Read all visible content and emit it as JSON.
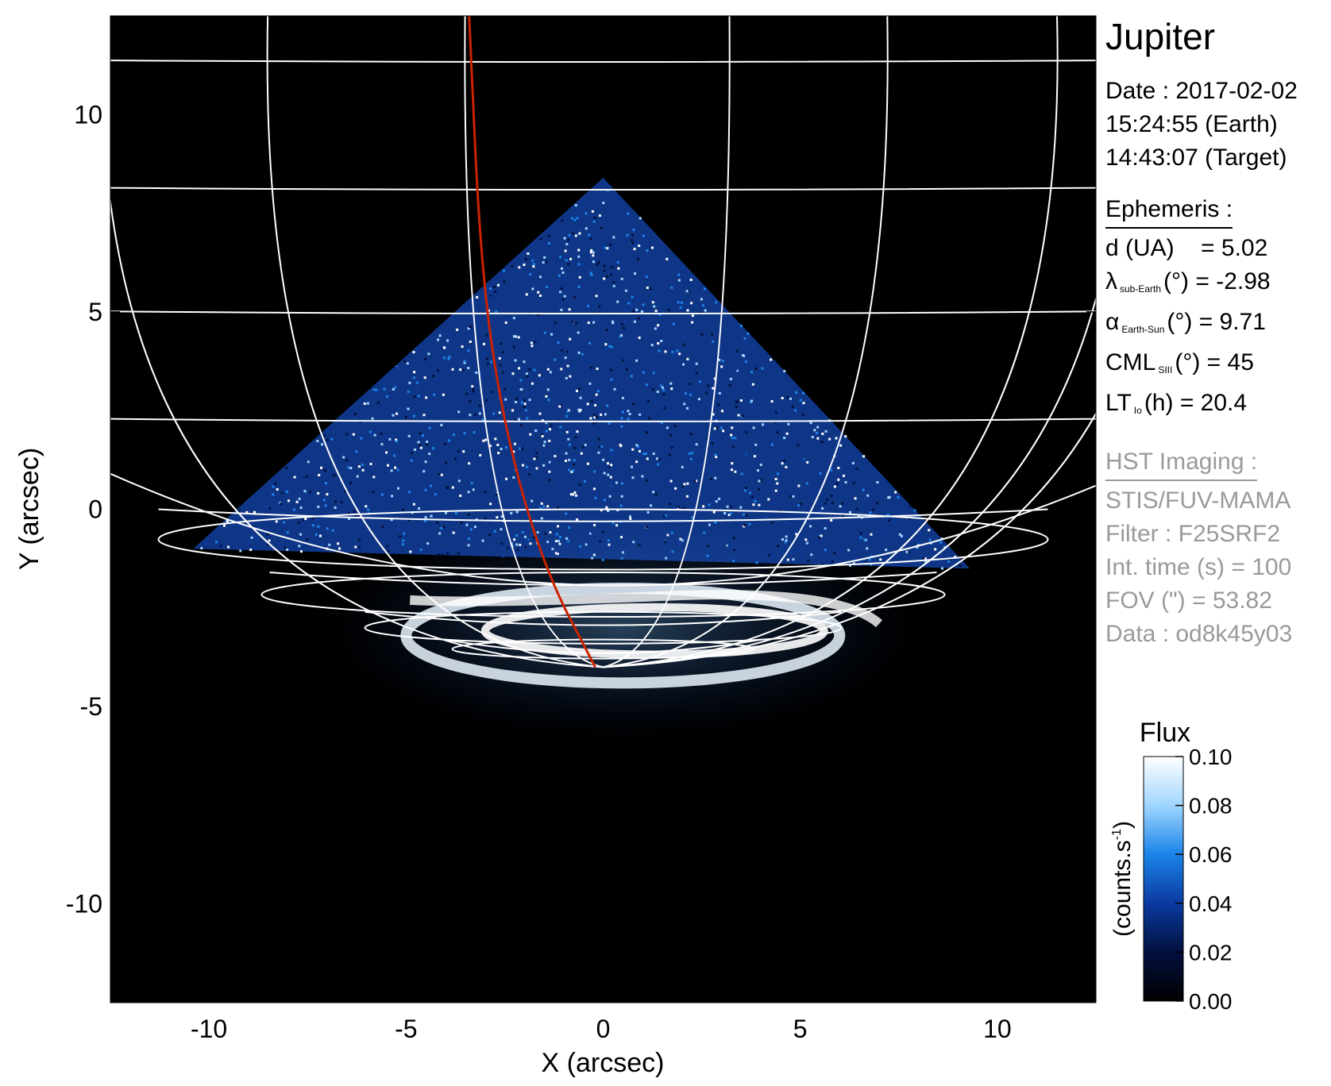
{
  "chart_data": {
    "type": "heatmap",
    "xlabel": "X (arcsec)",
    "ylabel": "Y (arcsec)",
    "xlim": [
      -12.5,
      12.5
    ],
    "ylim": [
      -12.5,
      12.5
    ],
    "xticks": [
      -10,
      -5,
      0,
      5,
      10
    ],
    "yticks": [
      -10,
      -5,
      0,
      5,
      10
    ],
    "xtick_labels": [
      "-10",
      "-5",
      "0",
      "5",
      "10"
    ],
    "ytick_labels": [
      "-10",
      "-5",
      "0",
      "5",
      "10"
    ],
    "grid": "planetocentric latitude/longitude grid (white)",
    "colormap": [
      "#000000",
      "#02103e",
      "#0a3aa0",
      "#1a84e8",
      "#9fd6ff",
      "#ffffff"
    ],
    "colorbar": {
      "title": "Flux",
      "label": "(counts.s-1)",
      "min": 0.0,
      "max": 0.1,
      "ticks": [
        "0.00",
        "0.02",
        "0.04",
        "0.06",
        "0.08",
        "0.10"
      ]
    },
    "overlays": {
      "footpath_color": "#cc2200",
      "grid_color": "#ffffff",
      "emission_region_shape": "triangle",
      "emission_region_apex": [
        0,
        8.4
      ],
      "emission_region_base": [
        [
          -10.4,
          -1.0
        ],
        [
          9.3,
          -1.5
        ]
      ],
      "auroral_oval_center": [
        0.5,
        -3.0
      ],
      "footpath_points": [
        [
          -3.4,
          12.5
        ],
        [
          -3.1,
          6
        ],
        [
          -2.5,
          2
        ],
        [
          -1.5,
          -1.5
        ],
        [
          -0.2,
          -4.0
        ]
      ]
    }
  },
  "info": {
    "title": "Jupiter",
    "date_line": "Date : 2017-02-02",
    "time_earth": "15:24:55 (Earth)",
    "time_target": "14:43:07 (Target)",
    "ephemeris_title": "Ephemeris :",
    "eph_d_label": "d (UA)",
    "eph_d_value": "= 5.02",
    "eph_lambda_symbol": "λ",
    "eph_lambda_sub": "sub-Earth",
    "eph_lambda_rest": "(°) = -2.98",
    "eph_alpha_symbol": "α",
    "eph_alpha_sub": "Earth-Sun",
    "eph_alpha_rest": "(°) = 9.71",
    "eph_cml_symbol": "CML",
    "eph_cml_sub": "SIII",
    "eph_cml_rest": "(°) = 45",
    "eph_lt_symbol": "LT",
    "eph_lt_sub": "Io",
    "eph_lt_rest": "(h) = 20.4",
    "hst_title": "HST Imaging :",
    "hst_instrument": "STIS/FUV-MAMA",
    "hst_filter": "Filter : F25SRF2",
    "hst_int_time": "Int. time (s) = 100",
    "hst_fov": "FOV (\") = 53.82",
    "hst_data": "Data : od8k45y03"
  }
}
